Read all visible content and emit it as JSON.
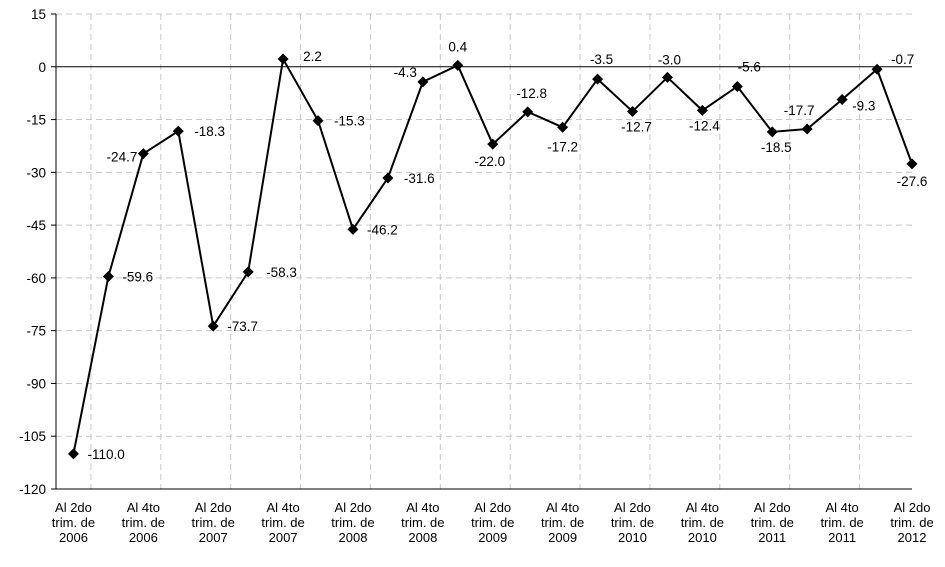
{
  "chart_data": {
    "type": "line",
    "title": "",
    "xlabel": "",
    "ylabel": "",
    "ylim": [
      -120,
      15
    ],
    "yticks": [
      15,
      0,
      -15,
      -30,
      -45,
      -60,
      -75,
      -90,
      -105,
      -120
    ],
    "grid": true,
    "grid_style": "dashed",
    "x_tick_labels": [
      [
        "Al 2do",
        "trim. de",
        "2006"
      ],
      [
        "Al 4to",
        "trim. de",
        "2006"
      ],
      [
        "Al 2do",
        "trim. de",
        "2007"
      ],
      [
        "Al 4to",
        "trim. de",
        "2007"
      ],
      [
        "Al 2do",
        "trim. de",
        "2008"
      ],
      [
        "Al 4to",
        "trim. de",
        "2008"
      ],
      [
        "Al 2do",
        "trim. de",
        "2009"
      ],
      [
        "Al 4to",
        "trim. de",
        "2009"
      ],
      [
        "Al 2do",
        "trim. de",
        "2010"
      ],
      [
        "Al 4to",
        "trim. de",
        "2010"
      ],
      [
        "Al 2do",
        "trim. de",
        "2011"
      ],
      [
        "Al 4to",
        "trim. de",
        "2011"
      ],
      [
        "Al 2do",
        "trim. de",
        "2012"
      ]
    ],
    "series": [
      {
        "values": [
          -110.0,
          -59.6,
          -24.7,
          -18.3,
          -73.7,
          -58.3,
          2.2,
          -15.3,
          -46.2,
          -31.6,
          -4.3,
          0.4,
          -22.0,
          -12.8,
          -17.2,
          -3.5,
          -12.7,
          -3.0,
          -12.4,
          -5.6,
          -18.5,
          -17.7,
          -9.3,
          -0.7,
          -27.6
        ],
        "labels": [
          "-110.0",
          "-59.6",
          "-24.7",
          "-18.3",
          "-73.7",
          "-58.3",
          "2.2",
          "-15.3",
          "-46.2",
          "-31.6",
          "-4.3",
          "0.4",
          "-22.0",
          "-12.8",
          "-17.2",
          "-3.5",
          "-12.7",
          "-3.0",
          "-12.4",
          "-5.6",
          "-18.5",
          "-17.7",
          "-9.3",
          "-0.7",
          "-27.6"
        ],
        "color": "#000000",
        "marker": "diamond"
      }
    ]
  }
}
